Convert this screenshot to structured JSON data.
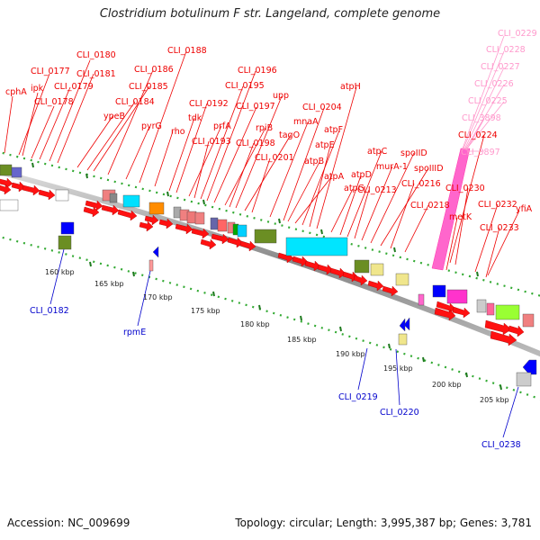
{
  "title": "Clostridium botulinum F str. Langeland, complete genome",
  "footer": {
    "accession": "Accession: NC_009699",
    "summary": "Topology: circular; Length: 3,995,387 bp; Genes: 3,781"
  },
  "colors": {
    "forward_gene": "#ff0000",
    "reverse_gene": "#0000ff",
    "gene_label": "#ee0000",
    "reverse_label": "#0000cc",
    "rna_label": "#ff99cc",
    "backbone": "#999999",
    "gc_dots": "#229922"
  },
  "scale_ticks": [
    "160 kbp",
    "165 kbp",
    "170 kbp",
    "175 kbp",
    "180 kbp",
    "185 kbp",
    "190 kbp",
    "195 kbp",
    "200 kbp",
    "205 kbp"
  ],
  "top_labels": [
    "cphA",
    "CLI_0177",
    "ipk",
    "CLI_0178",
    "CLI_0179",
    "CLI_0180",
    "CLI_0181",
    "ypeB",
    "CLI_0184",
    "CLI_0185",
    "CLI_0186",
    "pyrG",
    "CLI_0188",
    "rho",
    "tdk",
    "CLI_0192",
    "prfA",
    "CLI_0193",
    "CLI_0195",
    "CLI_0196",
    "CLI_0197",
    "rpiB",
    "CLI_0198",
    "upp",
    "tagO",
    "CLI_0201",
    "mnaA",
    "CLI_0204",
    "atpB",
    "atpA",
    "atpF",
    "atpE",
    "atpH",
    "atpG",
    "atpD",
    "atpC",
    "CLI_0213",
    "murA-1",
    "spoIID",
    "spoIIID",
    "CLI_0216",
    "CLI_0218",
    "CLI_0224",
    "CLI_0230",
    "metK",
    "CLI_0232",
    "yfiA",
    "CLI_0233"
  ],
  "rna_labels": [
    "CLI_0229",
    "CLI_0228",
    "CLI_0227",
    "CLI_0226",
    "CLI_0225",
    "CLI_3898",
    "CLI_3897"
  ],
  "bottom_labels": [
    "CLI_0182",
    "rpmE",
    "CLI_0219",
    "CLI_0220",
    "CLI_0238"
  ]
}
